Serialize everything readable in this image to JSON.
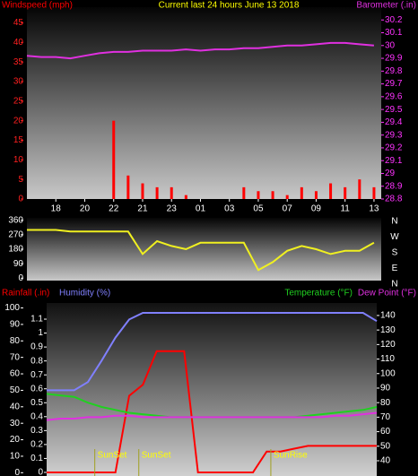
{
  "chart_data": [
    {
      "type": "line",
      "title": "Current last 24 hours June 13 2018",
      "x": [
        0,
        1,
        2,
        3,
        4,
        5,
        6,
        7,
        8,
        9,
        10,
        11,
        12,
        13,
        14,
        15,
        16,
        17,
        18,
        19,
        20,
        21,
        22,
        23,
        24
      ],
      "xlim": [
        0,
        24.5
      ],
      "xticks": [
        {
          "value": 2,
          "label": "18"
        },
        {
          "value": 4,
          "label": "20"
        },
        {
          "value": 6,
          "label": "22"
        },
        {
          "value": 8,
          "label": "21"
        },
        {
          "value": 10,
          "label": "23"
        },
        {
          "value": 12,
          "label": "01"
        },
        {
          "value": 14,
          "label": "03"
        },
        {
          "value": 16,
          "label": "05"
        },
        {
          "value": 18,
          "label": "07"
        },
        {
          "value": 20,
          "label": "09"
        },
        {
          "value": 22,
          "label": "11"
        },
        {
          "value": 24,
          "label": "13"
        }
      ],
      "ylim": [
        0,
        49
      ],
      "yticks": [
        0,
        5,
        10,
        15,
        20,
        25,
        30,
        35,
        40,
        45
      ],
      "ycolor": "#ff2020",
      "y2lim": [
        28.8,
        30.3
      ],
      "y2ticks": [
        28.8,
        28.9,
        29,
        29.1,
        29.2,
        29.3,
        29.4,
        29.5,
        29.6,
        29.7,
        29.8,
        29.9,
        30,
        30.1,
        30.2
      ],
      "y2color": "#ff33ff",
      "series": [
        {
          "name": "Windspeed (mph)",
          "type": "bar",
          "color": "#ff0000",
          "values": [
            0,
            0,
            0,
            0,
            0,
            0,
            20,
            6,
            4,
            3,
            3,
            1,
            0,
            0,
            0,
            3,
            2,
            2,
            1,
            3,
            2,
            4,
            3,
            5,
            3
          ]
        },
        {
          "name": "Barometer (.in)",
          "axis": "y2",
          "color": "#e030e0",
          "values": [
            29.92,
            29.91,
            29.91,
            29.9,
            29.92,
            29.94,
            29.95,
            29.95,
            29.96,
            29.96,
            29.96,
            29.97,
            29.96,
            29.97,
            29.97,
            29.98,
            29.98,
            29.99,
            30,
            30,
            30.01,
            30.02,
            30.02,
            30.01,
            30
          ]
        }
      ]
    },
    {
      "type": "line",
      "x": [
        0,
        1,
        2,
        3,
        4,
        5,
        6,
        7,
        8,
        9,
        10,
        11,
        12,
        13,
        14,
        15,
        16,
        17,
        18,
        19,
        20,
        21,
        22,
        23,
        24
      ],
      "xlim": [
        0,
        24.5
      ],
      "ylim": [
        -15,
        375
      ],
      "yticks": [
        0,
        90,
        180,
        270,
        360
      ],
      "ycolor": "#ffffff",
      "compass": [
        "N",
        "W",
        "S",
        "E",
        "N"
      ],
      "series": [
        {
          "color": "#f0f020",
          "values": [
            300,
            300,
            300,
            290,
            290,
            290,
            290,
            290,
            150,
            230,
            200,
            180,
            220,
            220,
            220,
            220,
            50,
            100,
            170,
            200,
            180,
            150,
            170,
            170,
            220
          ]
        }
      ]
    },
    {
      "type": "line",
      "x": [
        0,
        1,
        2,
        3,
        4,
        5,
        6,
        7,
        8,
        9,
        10,
        11,
        12,
        13,
        14,
        15,
        16,
        17,
        18,
        19,
        20,
        21,
        22,
        23,
        24
      ],
      "xlim": [
        0,
        24
      ],
      "ylim": [
        -2,
        103
      ],
      "yticks": [
        0,
        10,
        20,
        30,
        40,
        50,
        60,
        70,
        80,
        90,
        100
      ],
      "ycolor": "#ffffff",
      "y2lim": [
        29.5,
        148.6
      ],
      "y2ticks": [
        40,
        50,
        60,
        70,
        80,
        90,
        100,
        110,
        120,
        130,
        140
      ],
      "y2color": "#ffffff",
      "y3lim": [
        -0.026,
        1.216
      ],
      "y3ticks": [
        0,
        0.1,
        0.2,
        0.3,
        0.4,
        0.5,
        0.6,
        0.7,
        0.8,
        0.9,
        1,
        1.1
      ],
      "y3color": "#ffffff",
      "series": [
        {
          "name": "Rainfall (.in)",
          "axis": "y3",
          "color": "#ff0000",
          "values": [
            0,
            0,
            0,
            0,
            0,
            0,
            0.55,
            0.63,
            0.87,
            0.87,
            0.87,
            0,
            0,
            0,
            0,
            0,
            0.15,
            0.15,
            0.17,
            0.19,
            0.19,
            0.19,
            0.19,
            0.19,
            0.19
          ]
        },
        {
          "name": "Humidity (%)",
          "color": "#8080ff",
          "values": [
            50,
            50,
            50,
            55,
            68,
            82,
            93,
            97,
            97,
            97,
            97,
            97,
            97,
            97,
            97,
            97,
            97,
            97,
            97,
            97,
            97,
            97,
            97,
            97,
            92
          ]
        },
        {
          "name": "Temperature (°F)",
          "axis": "y2",
          "color": "#20d020",
          "values": [
            86,
            85,
            84,
            80,
            77,
            75,
            73,
            72,
            71,
            70,
            70,
            70,
            70,
            70,
            70,
            70,
            70,
            70,
            70,
            71,
            72,
            73,
            74,
            75,
            77
          ]
        },
        {
          "name": "Dew Point (°F)",
          "axis": "y2",
          "color": "#e030e0",
          "values": [
            68,
            69,
            69,
            70,
            70,
            71,
            71,
            70,
            70,
            70,
            70,
            70,
            70,
            70,
            70,
            70,
            70,
            70,
            70,
            70,
            70,
            71,
            71,
            72,
            73
          ]
        }
      ],
      "annotations": [
        {
          "text": "SunSet",
          "x": 3.5
        },
        {
          "text": "SunSet",
          "x": 6.7
        },
        {
          "text": "SunRise",
          "x": 16.3
        }
      ]
    }
  ]
}
